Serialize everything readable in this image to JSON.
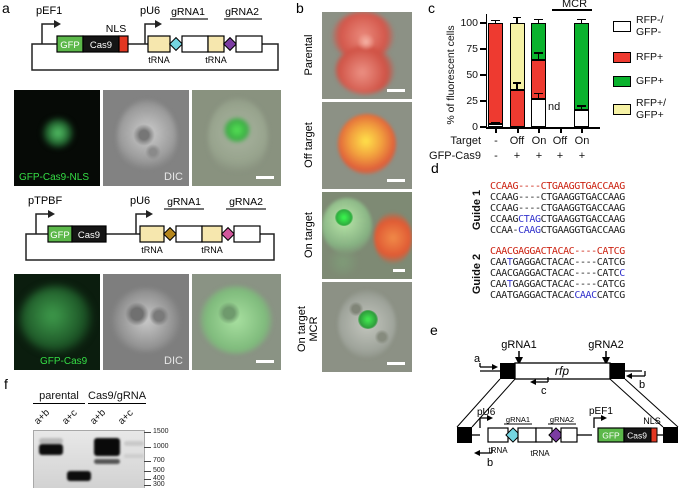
{
  "colors": {
    "chart_red": "#ee3a30",
    "chart_green": "#0ab22d",
    "chart_yellow": "#f6f2a5",
    "chart_white": "#ffffff",
    "gfp_green": "#5cb84a",
    "cas9_black": "#151515",
    "nls_red": "#e23722",
    "trna_tan": "#f6e7ae",
    "diamond_cyan": "#74d6e2",
    "diamond_purple": "#7b3ca2",
    "diamond_olive": "#b5861c",
    "diamond_pink": "#d2569c"
  },
  "panel_labels": {
    "a": "a",
    "b": "b",
    "c": "c",
    "d": "d",
    "e": "e",
    "f": "f"
  },
  "panel_a": {
    "construct1": {
      "promoter_left": "pEF1",
      "promoter_right": "pU6",
      "gfp": "GFP",
      "cas9": "Cas9",
      "nls": "NLS",
      "trna1": "tRNA",
      "trna2": "tRNA",
      "grna1": "gRNA1",
      "grna2": "gRNA2"
    },
    "micro_row1": {
      "gfp_label": "GFP-Cas9-NLS",
      "dic_label": "DIC"
    },
    "construct2": {
      "promoter_left": "pTPBF",
      "promoter_right": "pU6",
      "gfp": "GFP",
      "cas9": "Cas9",
      "trna1": "tRNA",
      "trna2": "tRNA",
      "grna1": "gRNA1",
      "grna2": "gRNA2"
    },
    "micro_row2": {
      "gfp_label": "GFP-Cas9",
      "dic_label": "DIC"
    }
  },
  "panel_b": {
    "row1_label": "Parental",
    "row2_label": "Off target",
    "row3_label": "On target",
    "row4_label_line1": "On target",
    "row4_label_line2": "MCR"
  },
  "panel_c": {
    "ylabel": "% of fluorescent cells",
    "yticks": [
      "100",
      "75",
      "50",
      "25",
      "0"
    ],
    "mcr_label": "MCR",
    "nd_label": "nd",
    "xrow1_label": "Target",
    "xrow1": [
      "-",
      "Off",
      "On",
      "Off",
      "On"
    ],
    "xrow2_label": "GFP-Cas9",
    "xrow2": [
      "-",
      "+",
      "+",
      "+",
      "+"
    ],
    "legend": [
      {
        "line1": "RFP-/",
        "line2": "GFP-",
        "color": "#ffffff"
      },
      {
        "line1": "RFP+",
        "line2": "",
        "color": "#ee3a30"
      },
      {
        "line1": "GFP+",
        "line2": "",
        "color": "#0ab22d"
      },
      {
        "line1": "RFP+/",
        "line2": "GFP+",
        "color": "#f6f2a5"
      }
    ],
    "bars": [
      {
        "segments": [
          {
            "name": "RFP-/GFP-",
            "color": "#ffffff",
            "value": 2.5,
            "err": 3
          },
          {
            "name": "RFP+",
            "color": "#ee3a30",
            "value": 97.5,
            "err": 4
          }
        ]
      },
      {
        "segments": [
          {
            "name": "RFP+",
            "color": "#ee3a30",
            "value": 36,
            "err": 8
          },
          {
            "name": "RFP+/GFP+",
            "color": "#f6f2a5",
            "value": 64,
            "err": 7
          }
        ]
      },
      {
        "segments": [
          {
            "name": "RFP-/GFP-",
            "color": "#ffffff",
            "value": 27,
            "err": 7
          },
          {
            "name": "RFP+",
            "color": "#ee3a30",
            "value": 37,
            "err": 9
          },
          {
            "name": "GFP+",
            "color": "#0ab22d",
            "value": 36,
            "err": 5
          }
        ]
      },
      {
        "segments": []
      },
      {
        "segments": [
          {
            "name": "RFP-/GFP-",
            "color": "#ffffff",
            "value": 16,
            "err": 6
          },
          {
            "name": "GFP+",
            "color": "#0ab22d",
            "value": 84,
            "err": 5
          }
        ]
      }
    ]
  },
  "chart_data": {
    "type": "bar",
    "stacked": true,
    "title": "",
    "xlabel_rows": {
      "Target": [
        "-",
        "Off",
        "On",
        "Off",
        "On"
      ],
      "GFP-Cas9": [
        "-",
        "+",
        "+",
        "+",
        "+"
      ]
    },
    "ylabel": "% of fluorescent cells",
    "ylim": [
      0,
      100
    ],
    "yticks": [
      0,
      25,
      50,
      75,
      100
    ],
    "group_annotation": {
      "label": "MCR",
      "bars": [
        3,
        4
      ]
    },
    "categories": [
      "Target - / Cas9 -",
      "Off target",
      "On target",
      "Off target MCR",
      "On target MCR"
    ],
    "series": [
      {
        "name": "RFP-/GFP-",
        "values": [
          2.5,
          0,
          27,
          null,
          16
        ]
      },
      {
        "name": "RFP+",
        "values": [
          97.5,
          36,
          37,
          null,
          0
        ]
      },
      {
        "name": "GFP+",
        "values": [
          0,
          0,
          36,
          null,
          84
        ]
      },
      {
        "name": "RFP+/GFP+",
        "values": [
          0,
          64,
          0,
          null,
          0
        ]
      }
    ],
    "annotations": [
      {
        "text": "nd",
        "bar": 3
      }
    ],
    "legend_position": "right"
  },
  "panel_d": {
    "guide1_label": "Guide 1",
    "guide2_label": "Guide 2",
    "guide1_lines": [
      {
        "pre": "CCAAG----CTGAAGGTGACCAAG",
        "blue": "",
        "post": ""
      },
      {
        "pre": "CCAAG----CTGAAGGTGACCAAG",
        "blue": "",
        "post": ""
      },
      {
        "pre": "CCAAG----CTGAAGGTGACCAAG",
        "blue": "",
        "post": ""
      },
      {
        "pre": "CCAAG",
        "blue": "CTAG",
        "post": "CTGAAGGTGACCAAG"
      },
      {
        "pre": "CCAA-",
        "blue": "CAAG",
        "post": "CTGAAGGTGACCAAG"
      }
    ],
    "guide2_lines": [
      {
        "pre": "CAACGAGGACTACAC----CATCG",
        "blue": "",
        "post": ""
      },
      {
        "pre": "CAA",
        "blue": "T",
        "post": "GAGGACTACAC----CATCG"
      },
      {
        "pre": "CAACGAGGACTACAC----CATC",
        "blue": "C",
        "post": ""
      },
      {
        "pre": "CAA",
        "blue": "T",
        "post": "GAGGACTACAC----CATCG"
      },
      {
        "pre": "CAATGAGGACTACAC",
        "blue": "CAAC",
        "post": "CATCG"
      }
    ]
  },
  "panel_e": {
    "grna1": "gRNA1",
    "grna2": "gRNA2",
    "rfp": "rfp",
    "primer_a": "a",
    "primer_b": "b",
    "primer_c": "c",
    "primer_b2": "b",
    "pu6": "pU6",
    "pef1": "pEF1",
    "nls": "NLS",
    "trna1": "tRNA",
    "trna2": "tRNA",
    "grna1_small": "gRNA1",
    "grna2_small": "gRNA2",
    "gfp": "GFP",
    "cas9": "Cas9"
  },
  "panel_f": {
    "group1": "parental",
    "group2": "Cas9/gRNA",
    "lanes": [
      "a+b",
      "a+c",
      "a+b",
      "a+c"
    ],
    "ladder": [
      "1500",
      "1000",
      "700",
      "500",
      "400",
      "300"
    ]
  }
}
